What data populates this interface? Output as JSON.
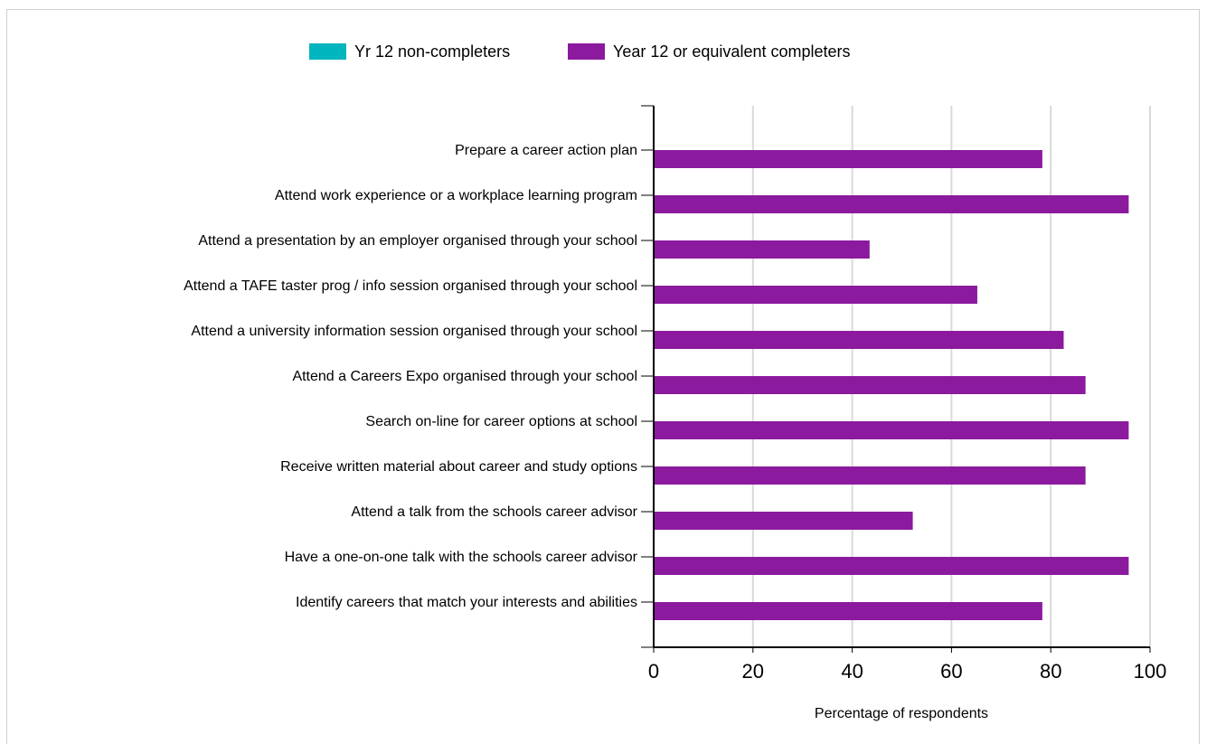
{
  "chart_data": {
    "type": "bar",
    "orientation": "horizontal",
    "categories": [
      "Prepare a career action plan",
      "Attend work experience or a workplace learning program",
      "Attend a presentation by an employer organised through your school",
      "Attend a TAFE taster prog / info session organised through your school",
      "Attend a university information session organised through your school",
      "Attend a Careers Expo organised through your school",
      "Search on-line for career options at school",
      "Receive written material about career and study options",
      "Attend a talk from the schools career advisor",
      "Have a one-on-one talk with the schools career advisor",
      "Identify careers that match your interests and abilities"
    ],
    "series": [
      {
        "name": "Yr 12 non-completers",
        "color": "#00b5bd",
        "values": [
          0,
          0,
          0,
          0,
          0,
          0,
          0,
          0,
          0,
          0,
          0
        ]
      },
      {
        "name": "Year 12 or equivalent completers",
        "color": "#8b1a9e",
        "values": [
          78.3,
          95.7,
          43.5,
          65.2,
          82.6,
          87.0,
          95.7,
          87.0,
          52.2,
          95.7,
          78.3
        ]
      }
    ],
    "xlim": [
      0,
      100
    ],
    "xticks": [
      "0",
      "20",
      "40",
      "60",
      "80",
      "100"
    ],
    "xlabel": "Percentage of respondents",
    "ylabel": "",
    "grid": true,
    "legend_position": "top"
  }
}
